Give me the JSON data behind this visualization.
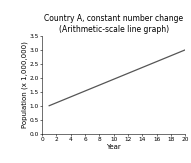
{
  "title_line1": "Country A, constant number change",
  "title_line2": "(Arithmetic-scale line graph)",
  "xlabel": "Year",
  "ylabel": "Population (x 1,000,000)",
  "x_start": 1,
  "x_end": 20,
  "y_start": 1.0,
  "y_end": 3.0,
  "xlim": [
    0,
    20
  ],
  "ylim": [
    0,
    3.5
  ],
  "xticks": [
    0,
    2,
    4,
    6,
    8,
    10,
    12,
    14,
    16,
    18,
    20
  ],
  "yticks": [
    0,
    0.5,
    1.0,
    1.5,
    2.0,
    2.5,
    3.0,
    3.5
  ],
  "line_color": "#555555",
  "line_width": 0.9,
  "title_fontsize": 5.5,
  "axis_label_fontsize": 5.0,
  "tick_fontsize": 4.2,
  "background_color": "#ffffff"
}
